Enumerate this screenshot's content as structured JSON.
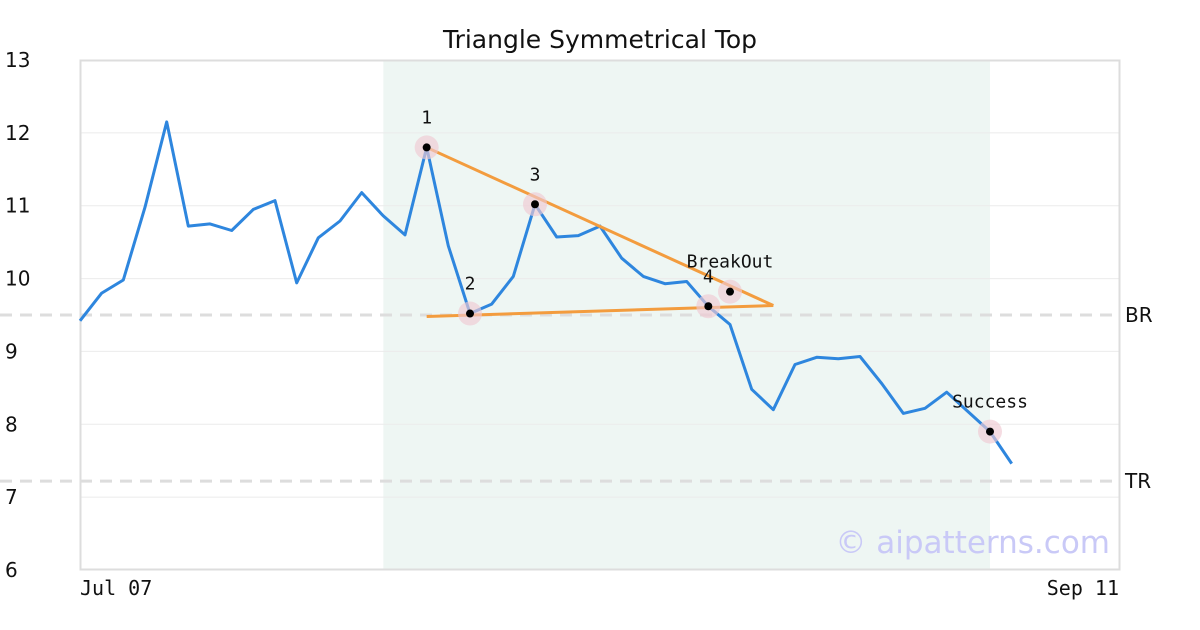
{
  "chart_data": {
    "type": "line",
    "title": "Triangle Symmetrical Top",
    "xlabel": "",
    "ylabel": "",
    "ylim": [
      6,
      13
    ],
    "yticks": [
      "6",
      "7",
      "8",
      "9",
      "10",
      "11",
      "12",
      "13"
    ],
    "grid": true,
    "x_tick_labels": [
      "Jul 07",
      "Sep 11"
    ],
    "x_range": [
      0,
      48
    ],
    "series": [
      {
        "values": [
          9.42,
          9.8,
          9.98,
          10.98,
          12.15,
          10.72,
          10.75,
          10.66,
          10.95,
          11.07,
          9.94,
          10.56,
          10.79,
          11.18,
          10.86,
          10.6,
          11.8,
          10.45,
          9.52,
          9.65,
          10.03,
          11.02,
          10.57,
          10.59,
          10.72,
          10.28,
          10.03,
          9.93,
          9.96,
          9.62,
          9.37,
          8.48,
          8.2,
          8.82,
          8.92,
          8.9,
          8.93,
          8.56,
          8.15,
          8.22,
          8.44,
          8.17,
          7.9,
          7.46
        ],
        "color": "#2e86de"
      }
    ],
    "highlight_region": {
      "x_start": 14,
      "x_end": 42,
      "color": "#eef6f3"
    },
    "reference_lines": [
      {
        "label": "BR",
        "y": 9.5
      },
      {
        "label": "TR",
        "y": 7.22
      }
    ],
    "trend_lines": [
      {
        "from": [
          16,
          11.8
        ],
        "to": [
          32,
          9.63
        ],
        "color": "#f39c3e"
      },
      {
        "from": [
          16,
          9.48
        ],
        "to": [
          32,
          9.63
        ],
        "color": "#f39c3e"
      }
    ],
    "markers": [
      {
        "label": "1",
        "x": 16,
        "y": 11.8
      },
      {
        "label": "2",
        "x": 18,
        "y": 9.52
      },
      {
        "label": "3",
        "x": 21,
        "y": 11.02
      },
      {
        "label": "4",
        "x": 29,
        "y": 9.62
      },
      {
        "label": "BreakOut",
        "x": 30,
        "y": 9.82
      },
      {
        "label": "Success",
        "x": 42,
        "y": 7.9
      }
    ],
    "watermark": "© aipatterns.com"
  }
}
